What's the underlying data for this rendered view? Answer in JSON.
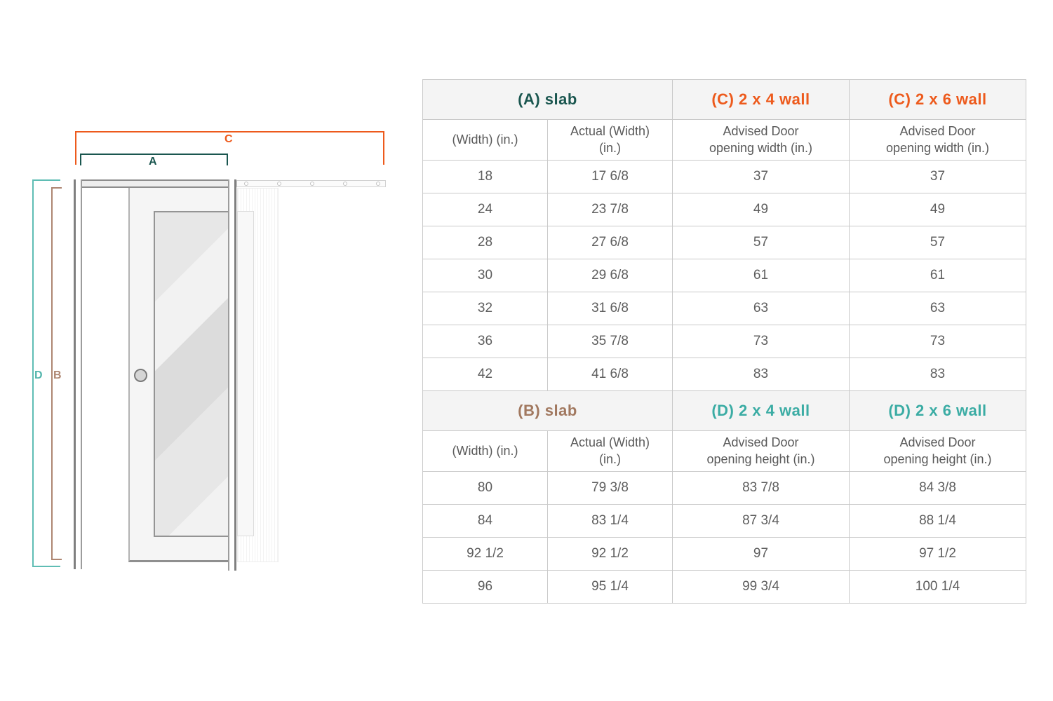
{
  "colors": {
    "orange": "#ED5A1C",
    "dark_teal": "#1A564F",
    "teal": "#3BACA4",
    "teal_bracket": "#52B5AC",
    "brown": "#A1785F",
    "brown_bracket": "#AE8672"
  },
  "diagram": {
    "labels": {
      "slab_width": "A",
      "slab_height": "B",
      "opening_width": "C",
      "opening_height": "D"
    }
  },
  "table": {
    "width_section": {
      "group_headers": [
        {
          "label": "(A) slab"
        },
        {
          "label": "(C) 2 x 4 wall"
        },
        {
          "label": "(C) 2 x 6 wall"
        }
      ],
      "col_headers": [
        {
          "line1": "(Width) (in.)",
          "line2": ""
        },
        {
          "line1": "Actual (Width)",
          "line2": "(in.)"
        },
        {
          "line1": "Advised Door",
          "line2": "opening width (in.)"
        },
        {
          "line1": "Advised Door",
          "line2": "opening width (in.)"
        }
      ],
      "rows": [
        [
          "18",
          "17 6/8",
          "37",
          "37"
        ],
        [
          "24",
          "23 7/8",
          "49",
          "49"
        ],
        [
          "28",
          "27 6/8",
          "57",
          "57"
        ],
        [
          "30",
          "29 6/8",
          "61",
          "61"
        ],
        [
          "32",
          "31 6/8",
          "63",
          "63"
        ],
        [
          "36",
          "35 7/8",
          "73",
          "73"
        ],
        [
          "42",
          "41 6/8",
          "83",
          "83"
        ]
      ]
    },
    "height_section": {
      "group_headers": [
        {
          "label": "(B) slab"
        },
        {
          "label": "(D) 2 x 4 wall"
        },
        {
          "label": "(D) 2 x 6 wall"
        }
      ],
      "col_headers": [
        {
          "line1": "(Width) (in.)",
          "line2": ""
        },
        {
          "line1": "Actual (Width)",
          "line2": "(in.)"
        },
        {
          "line1": "Advised Door",
          "line2": "opening height (in.)"
        },
        {
          "line1": "Advised Door",
          "line2": "opening height (in.)"
        }
      ],
      "rows": [
        [
          "80",
          "79 3/8",
          "83 7/8",
          "84 3/8"
        ],
        [
          "84",
          "83 1/4",
          "87 3/4",
          "88 1/4"
        ],
        [
          "92 1/2",
          "92 1/2",
          "97",
          "97 1/2"
        ],
        [
          "96",
          "95 1/4",
          "99 3/4",
          "100 1/4"
        ]
      ]
    }
  }
}
